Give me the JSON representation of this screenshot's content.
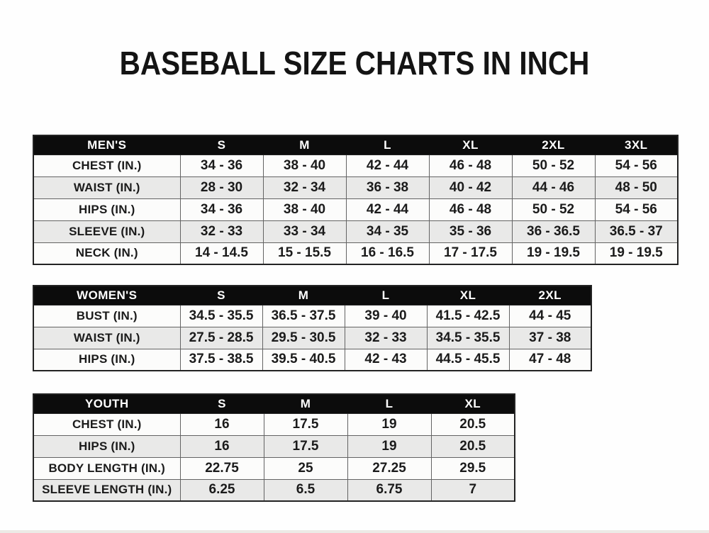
{
  "page": {
    "title": "BASEBALL SIZE CHARTS IN INCH",
    "background": "#ffffff"
  },
  "colors": {
    "header_bg": "#0c0c0c",
    "header_text": "#ffffff",
    "row_bg": "#fcfcfb",
    "row_alt_bg": "#e9e9e8",
    "border": "#636363",
    "outer_border": "#232323",
    "text": "#1b1b1b"
  },
  "chart_data": [
    {
      "type": "table",
      "title": "MEN'S",
      "columns": [
        "MEN'S",
        "S",
        "M",
        "L",
        "XL",
        "2XL",
        "3XL"
      ],
      "rows": [
        {
          "label": "CHEST (IN.)",
          "values": [
            "34 - 36",
            "38 - 40",
            "42 - 44",
            "46 - 48",
            "50 - 52",
            "54 - 56"
          ]
        },
        {
          "label": "WAIST (IN.)",
          "values": [
            "28 - 30",
            "32 - 34",
            "36 - 38",
            "40 - 42",
            "44 - 46",
            "48 - 50"
          ]
        },
        {
          "label": "HIPS (IN.)",
          "values": [
            "34 - 36",
            "38 - 40",
            "42 - 44",
            "46 - 48",
            "50 - 52",
            "54 - 56"
          ]
        },
        {
          "label": "SLEEVE (IN.)",
          "values": [
            "32 - 33",
            "33 - 34",
            "34 - 35",
            "35 - 36",
            "36 - 36.5",
            "36.5 - 37"
          ]
        },
        {
          "label": "NECK (IN.)",
          "values": [
            "14 - 14.5",
            "15 - 15.5",
            "16 - 16.5",
            "17 - 17.5",
            "19 - 19.5",
            "19 - 19.5"
          ]
        }
      ]
    },
    {
      "type": "table",
      "title": "WOMEN'S",
      "columns": [
        "WOMEN'S",
        "S",
        "M",
        "L",
        "XL",
        "2XL"
      ],
      "rows": [
        {
          "label": "BUST (IN.)",
          "values": [
            "34.5 - 35.5",
            "36.5 - 37.5",
            "39 - 40",
            "41.5 - 42.5",
            "44 - 45"
          ]
        },
        {
          "label": "WAIST (IN.)",
          "values": [
            "27.5 - 28.5",
            "29.5 - 30.5",
            "32 - 33",
            "34.5 - 35.5",
            "37 - 38"
          ]
        },
        {
          "label": "HIPS (IN.)",
          "values": [
            "37.5 - 38.5",
            "39.5 - 40.5",
            "42 - 43",
            "44.5 - 45.5",
            "47 - 48"
          ]
        }
      ]
    },
    {
      "type": "table",
      "title": "YOUTH",
      "columns": [
        "YOUTH",
        "S",
        "M",
        "L",
        "XL"
      ],
      "rows": [
        {
          "label": "CHEST (IN.)",
          "values": [
            "16",
            "17.5",
            "19",
            "20.5"
          ]
        },
        {
          "label": "HIPS (IN.)",
          "values": [
            "16",
            "17.5",
            "19",
            "20.5"
          ]
        },
        {
          "label": "BODY LENGTH (IN.)",
          "values": [
            "22.75",
            "25",
            "27.25",
            "29.5"
          ]
        },
        {
          "label": "SLEEVE LENGTH (IN.)",
          "values": [
            "6.25",
            "6.5",
            "6.75",
            "7"
          ]
        }
      ]
    }
  ]
}
